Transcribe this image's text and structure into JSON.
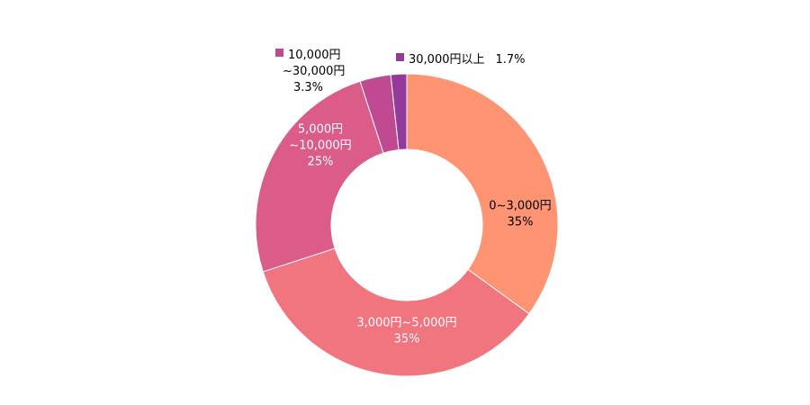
{
  "chart_data": {
    "type": "pie",
    "donut": true,
    "title": "",
    "slices": [
      {
        "label_lines": [
          "0~3,000円",
          "35%"
        ],
        "category": "0~3,000円",
        "value": 35,
        "value_label": "35%",
        "color": "#FF9473",
        "label_color": "#000000"
      },
      {
        "label_lines": [
          "3,000円~5,000円",
          "35%"
        ],
        "category": "3,000円~5,000円",
        "value": 35,
        "value_label": "35%",
        "color": "#F0757E",
        "label_color": "#ffffff"
      },
      {
        "label_lines": [
          "5,000円",
          "~10,000円",
          "25%"
        ],
        "category": "5,000円~10,000円",
        "value": 25,
        "value_label": "25%",
        "color": "#DB5B89",
        "label_color": "#ffffff"
      },
      {
        "label_lines": [
          "10,000円",
          "~30,000円",
          "3.3%"
        ],
        "category": "10,000円~30,000円",
        "value": 3.3,
        "value_label": "3.3%",
        "color": "#C04A91",
        "label_color": "#000000"
      },
      {
        "label_lines": [
          "30,000円以上",
          "1.7%"
        ],
        "category": "30,000円以上",
        "value": 1.7,
        "value_label": "1.7%",
        "color": "#943A9A",
        "label_color": "#000000"
      }
    ]
  }
}
